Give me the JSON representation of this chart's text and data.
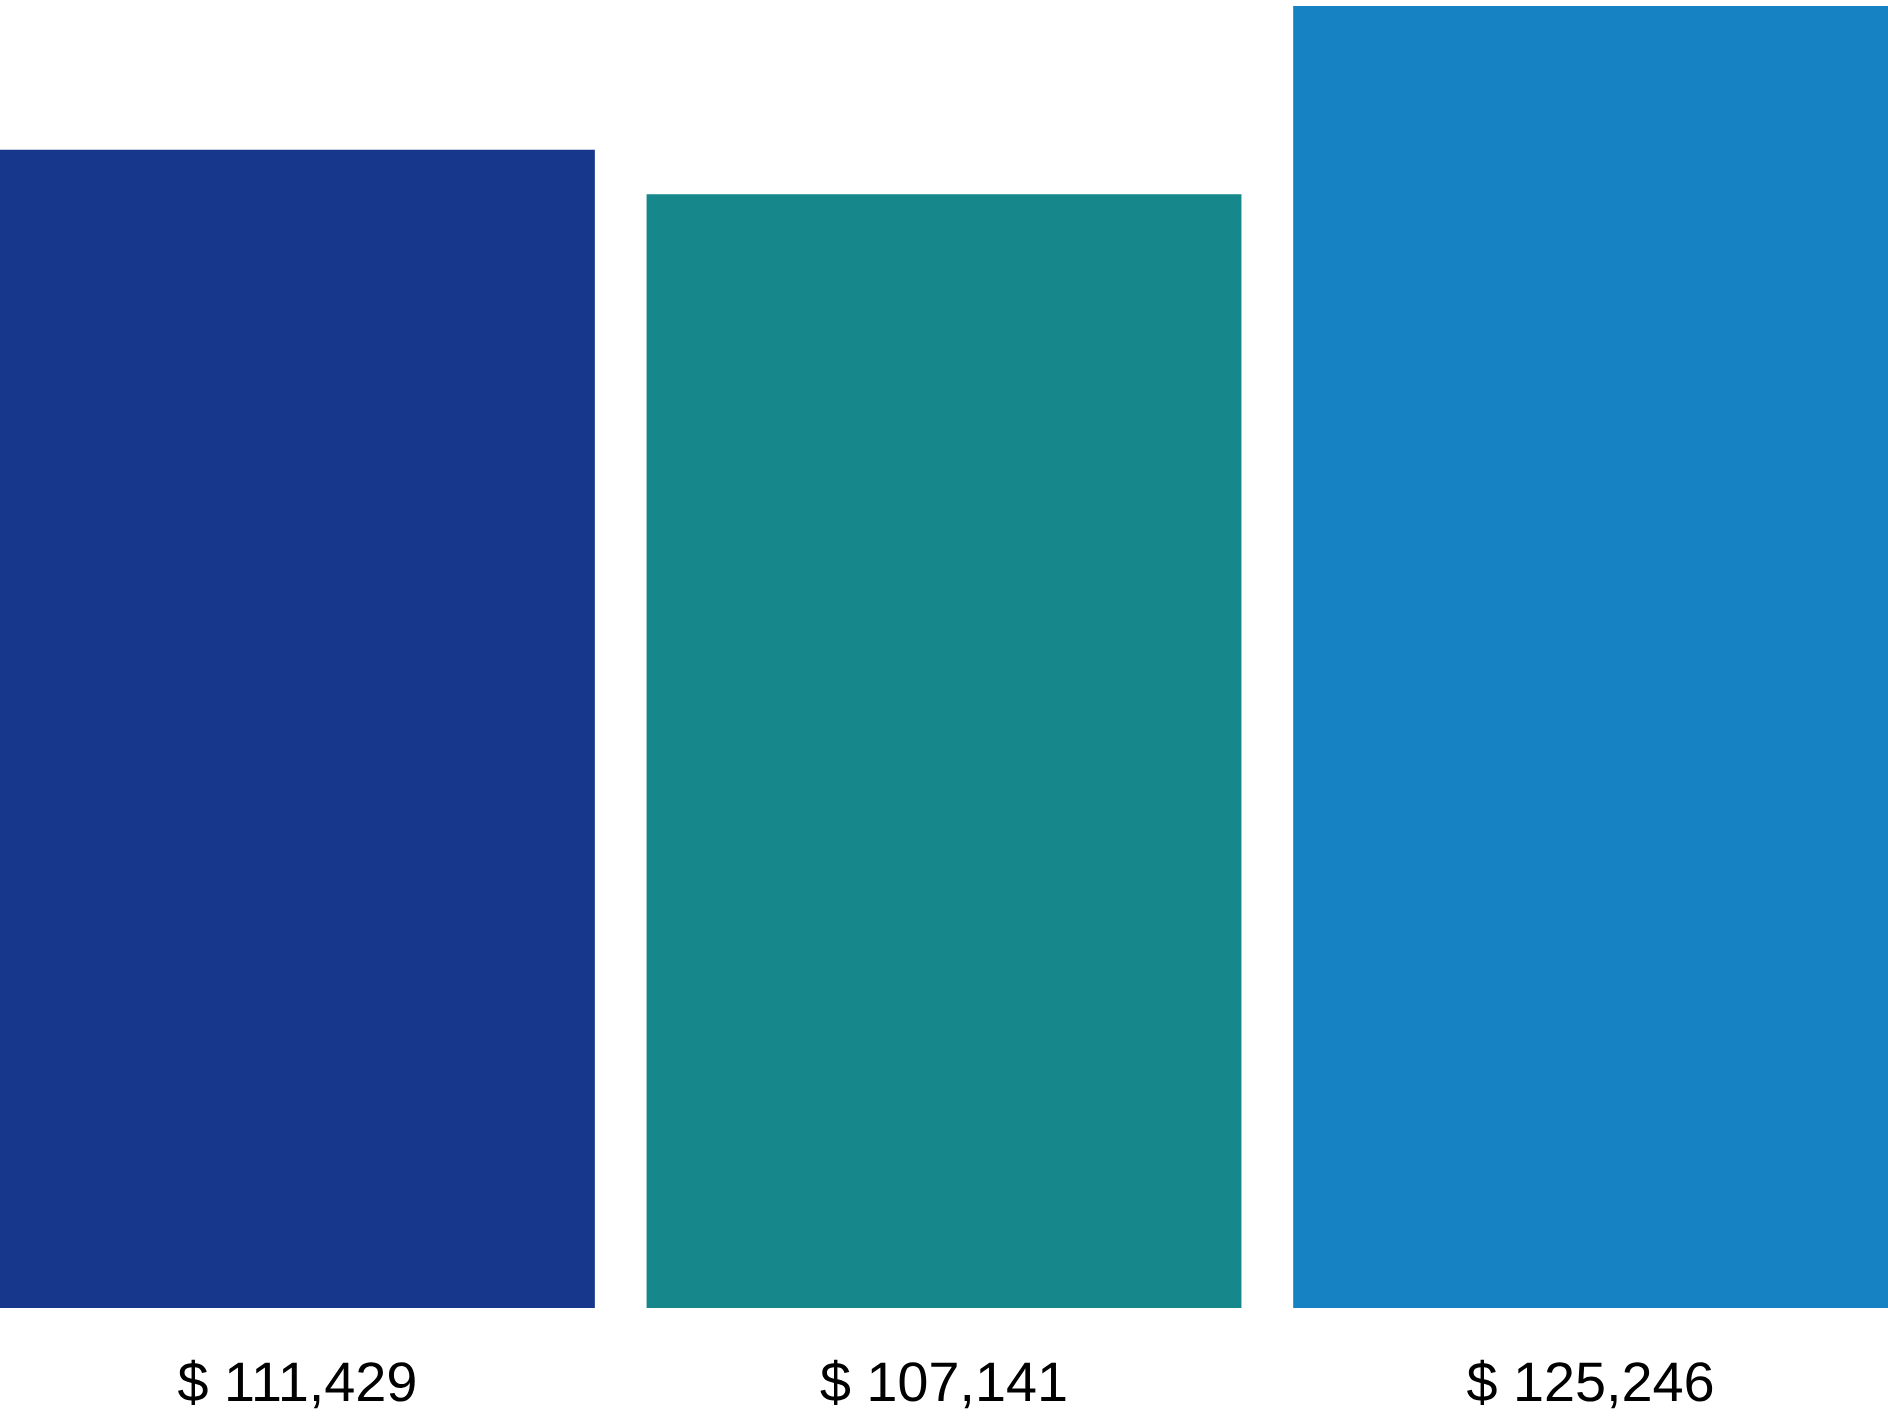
{
  "chart_data": {
    "type": "bar",
    "categories": [
      null,
      null,
      null
    ],
    "values": [
      111429,
      107141,
      125246
    ],
    "colors": [
      "#17378c",
      "#16878a",
      "#1682c4"
    ],
    "value_labels": [
      "$ 111,429",
      "$ 107,141",
      "$ 125,246"
    ]
  }
}
